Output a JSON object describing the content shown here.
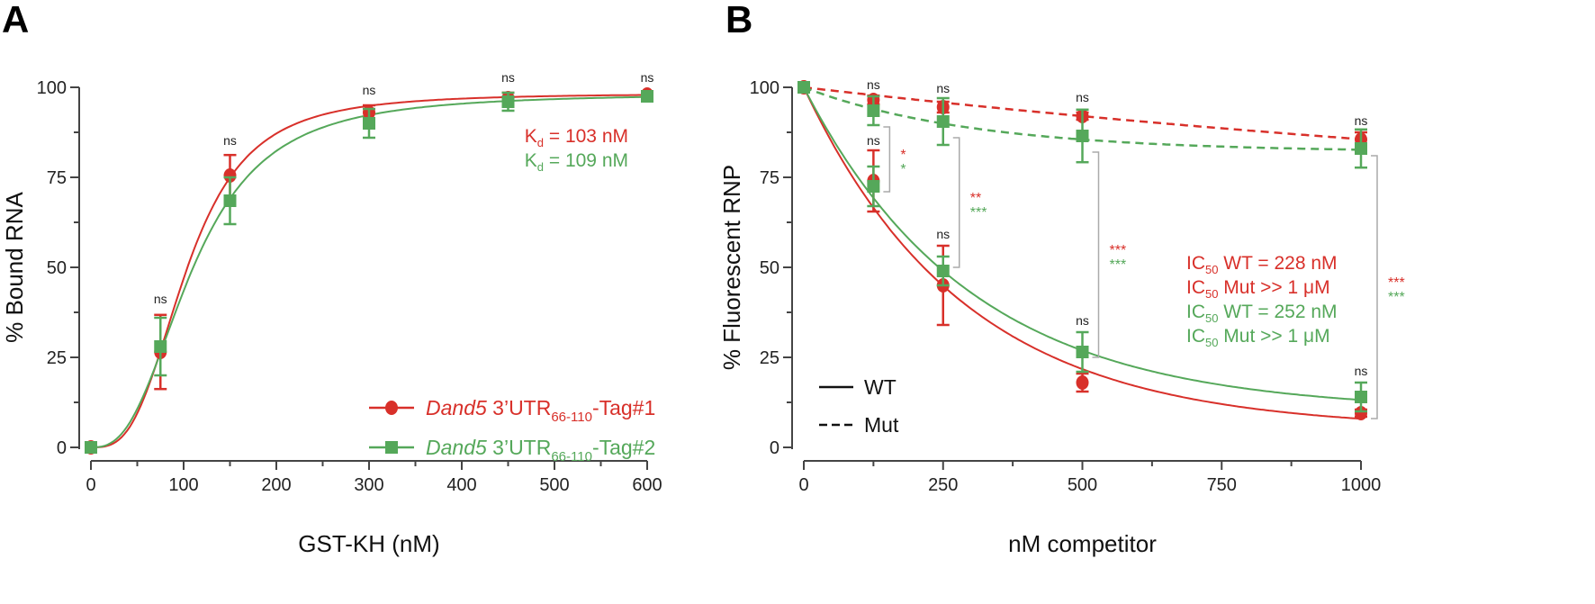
{
  "colors": {
    "red": "#d8302a",
    "green": "#55a85a",
    "axis": "#444444",
    "bracket": "#aaaaaa"
  },
  "chart_data": [
    {
      "panel": "A",
      "type": "scatter+line",
      "xlabel": "GST-KH (nM)",
      "ylabel": "% Bound RNA",
      "xlim": [
        0,
        600
      ],
      "ylim": [
        0,
        100
      ],
      "xticks": [
        0,
        100,
        200,
        300,
        400,
        500,
        600
      ],
      "yticks": [
        0,
        25,
        50,
        75,
        100
      ],
      "series": [
        {
          "name": "Dand5 3'UTR66-110-Tag#1",
          "italic": "Dand5",
          "main": " 3’UTR",
          "sub": "66-110",
          "suffix": "-Tag#1",
          "color": "red",
          "marker": "circle",
          "x": [
            0,
            75,
            150,
            300,
            450,
            600
          ],
          "y": [
            0,
            26.5,
            75.5,
            93,
            97,
            98
          ],
          "err": [
            0,
            10.3,
            5.7,
            2,
            1.5,
            0.8
          ],
          "fit": {
            "model": "hill",
            "Kd": 103,
            "n": 3.1,
            "Bmax": 98.3
          }
        },
        {
          "name": "Dand5 3'UTR66-110-Tag#2",
          "italic": "Dand5",
          "main": " 3’UTR",
          "sub": "66-110",
          "suffix": "-Tag#2",
          "color": "green",
          "marker": "square",
          "x": [
            0,
            75,
            150,
            300,
            450,
            600
          ],
          "y": [
            0,
            28,
            68.5,
            90,
            96,
            97.5
          ],
          "err": [
            0,
            8,
            6.5,
            4,
            2.5,
            1
          ],
          "fit": {
            "model": "hill",
            "Kd": 109,
            "n": 2.7,
            "Bmax": 98.3
          }
        }
      ],
      "annotations": [
        {
          "text": "ns",
          "x": 75,
          "y": 40
        },
        {
          "text": "ns",
          "x": 150,
          "y": 84
        },
        {
          "text": "ns",
          "x": 300,
          "y": 98
        },
        {
          "text": "ns",
          "x": 450,
          "y": 101.5
        },
        {
          "text": "ns",
          "x": 600,
          "y": 101.5
        }
      ],
      "notes": [
        {
          "pre": "K",
          "sub": "d",
          "post": " = 103 nM",
          "color": "red"
        },
        {
          "pre": "K",
          "sub": "d",
          "post": " = 109 nM",
          "color": "green"
        }
      ]
    },
    {
      "panel": "B",
      "type": "scatter+line",
      "xlabel": "nM competitor",
      "ylabel": "% Fluorescent RNP",
      "xlim": [
        0,
        1000
      ],
      "ylim": [
        0,
        100
      ],
      "xticks": [
        0,
        250,
        500,
        750,
        1000
      ],
      "yticks": [
        0,
        25,
        50,
        75,
        100
      ],
      "series": [
        {
          "name": "WT red",
          "color": "red",
          "marker": "circle",
          "dash": false,
          "x": [
            0,
            125,
            250,
            500,
            1000
          ],
          "y": [
            100,
            74,
            45,
            18,
            9.5
          ],
          "err": [
            0,
            8.5,
            11,
            2.5,
            1
          ],
          "fit": {
            "model": "decay",
            "plateau": 5,
            "k": 288
          }
        },
        {
          "name": "WT green",
          "color": "green",
          "marker": "square",
          "dash": false,
          "x": [
            0,
            125,
            250,
            500,
            1000
          ],
          "y": [
            100,
            72.5,
            49,
            26.5,
            14
          ],
          "err": [
            0,
            5.5,
            4,
            5.5,
            4
          ],
          "fit": {
            "model": "decay",
            "plateau": 10,
            "k": 299
          }
        },
        {
          "name": "Mut red",
          "color": "red",
          "marker": "circle",
          "dash": true,
          "x": [
            0,
            125,
            250,
            500,
            1000
          ],
          "y": [
            100,
            96.5,
            94.5,
            92,
            85.5
          ],
          "err": [
            0,
            1.2,
            1.5,
            1,
            2
          ],
          "fit": {
            "model": "decay",
            "plateau": 60,
            "k": 2240
          }
        },
        {
          "name": "Mut green",
          "color": "green",
          "marker": "square",
          "dash": true,
          "x": [
            0,
            125,
            250,
            500,
            1000
          ],
          "y": [
            100,
            93.5,
            90.5,
            86.5,
            83
          ],
          "err": [
            0,
            4,
            6.5,
            7.3,
            5.3
          ],
          "fit": {
            "model": "decay",
            "plateau": 82,
            "k": 305
          }
        }
      ],
      "annotations": [
        {
          "text": "ns",
          "x": 125,
          "y": 99.5
        },
        {
          "text": "ns",
          "x": 250,
          "y": 98.5
        },
        {
          "text": "ns",
          "x": 500,
          "y": 96
        },
        {
          "text": "ns",
          "x": 1000,
          "y": 89.5
        },
        {
          "text": "ns",
          "x": 125,
          "y": 84
        },
        {
          "text": "ns",
          "x": 250,
          "y": 58
        },
        {
          "text": "ns",
          "x": 500,
          "y": 34
        },
        {
          "text": "ns",
          "x": 1000,
          "y": 20
        }
      ],
      "brackets": [
        {
          "x": 125,
          "top": 89,
          "bottom": 71,
          "red": "*",
          "green": "*"
        },
        {
          "x": 250,
          "top": 86,
          "bottom": 50,
          "red": "**",
          "green": "***"
        },
        {
          "x": 500,
          "top": 82,
          "bottom": 25,
          "red": "***",
          "green": "***"
        },
        {
          "x": 1000,
          "top": 81,
          "bottom": 8,
          "red": "***",
          "green": "***"
        }
      ],
      "notes": [
        {
          "pre": "IC",
          "sub": "50",
          "post": " WT = 228 nM",
          "color": "red"
        },
        {
          "pre": "IC",
          "sub": "50",
          "post": " Mut >> 1 μM",
          "color": "red"
        },
        {
          "pre": "IC",
          "sub": "50",
          "post": " WT = 252 nM",
          "color": "green"
        },
        {
          "pre": "IC",
          "sub": "50",
          "post": " Mut >> 1 μM",
          "color": "green"
        }
      ],
      "legend": [
        {
          "label": "WT",
          "dash": false
        },
        {
          "label": "Mut",
          "dash": true
        }
      ]
    }
  ]
}
